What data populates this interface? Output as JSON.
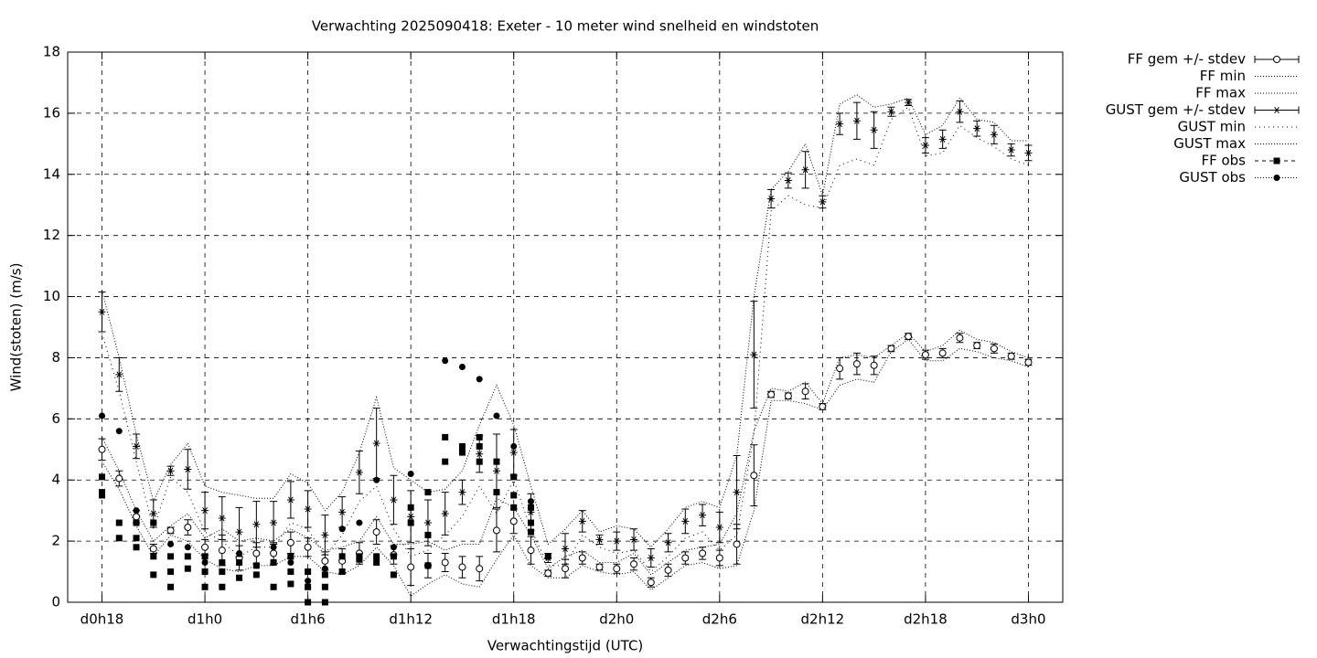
{
  "chart_data": {
    "type": "line",
    "title": "Verwachting 2025090418: Exeter - 10 meter wind snelheid en windstoten",
    "x_label": "Verwachtingstijd (UTC)",
    "y_label": "Wind(stoten) (m/s)",
    "xlim": [
      16,
      74
    ],
    "xticks": [
      {
        "value": 18,
        "label": "d0h18"
      },
      {
        "value": 24,
        "label": "d1h0"
      },
      {
        "value": 30,
        "label": "d1h6"
      },
      {
        "value": 36,
        "label": "d1h12"
      },
      {
        "value": 42,
        "label": "d1h18"
      },
      {
        "value": 48,
        "label": "d2h0"
      },
      {
        "value": 54,
        "label": "d2h6"
      },
      {
        "value": 60,
        "label": "d2h12"
      },
      {
        "value": 66,
        "label": "d2h18"
      },
      {
        "value": 72,
        "label": "d3h0"
      }
    ],
    "ylim": [
      0,
      18
    ],
    "yticks": [
      0,
      2,
      4,
      6,
      8,
      10,
      12,
      14,
      16,
      18
    ],
    "grid": true,
    "x": [
      18,
      19,
      20,
      21,
      22,
      23,
      24,
      25,
      26,
      27,
      28,
      29,
      30,
      31,
      32,
      33,
      34,
      35,
      36,
      37,
      38,
      39,
      40,
      41,
      42,
      43,
      44,
      45,
      46,
      47,
      48,
      49,
      50,
      51,
      52,
      53,
      54,
      55,
      56,
      57,
      58,
      59,
      60,
      61,
      62,
      63,
      64,
      65,
      66,
      67,
      68,
      69,
      70,
      71,
      72
    ],
    "series": [
      {
        "name": "FF gem +/- stdev",
        "color": "#000000",
        "kind": "errorbars",
        "marker": "circle",
        "line": "solid",
        "values": [
          5.0,
          4.05,
          2.8,
          1.75,
          2.35,
          2.45,
          1.8,
          1.7,
          1.45,
          1.6,
          1.6,
          1.95,
          1.8,
          1.35,
          1.35,
          1.6,
          2.3,
          1.55,
          1.15,
          1.2,
          1.3,
          1.15,
          1.1,
          2.35,
          2.65,
          1.7,
          0.95,
          1.1,
          1.45,
          1.15,
          1.1,
          1.25,
          0.65,
          1.05,
          1.45,
          1.6,
          1.45,
          1.9,
          4.15,
          6.8,
          6.75,
          6.9,
          6.4,
          7.65,
          7.8,
          7.75,
          8.3,
          8.7,
          8.1,
          8.15,
          8.65,
          8.4,
          8.3,
          8.05,
          7.85
        ],
        "errors": [
          0.35,
          0.25,
          0.2,
          0.15,
          0.1,
          0.25,
          0.25,
          0.5,
          0.4,
          0.35,
          0.35,
          0.35,
          0.3,
          0.3,
          0.4,
          0.35,
          0.4,
          0.3,
          0.6,
          0.4,
          0.3,
          0.35,
          0.4,
          0.7,
          0.4,
          0.45,
          0.1,
          0.3,
          0.2,
          0.1,
          0.15,
          0.2,
          0.15,
          0.2,
          0.2,
          0.2,
          0.25,
          0.65,
          1.0,
          0.1,
          0.1,
          0.25,
          0.1,
          0.35,
          0.35,
          0.3,
          0.1,
          0.1,
          0.15,
          0.15,
          0.15,
          0.1,
          0.15,
          0.1,
          0.1
        ]
      },
      {
        "name": "FF min",
        "color": "#000000",
        "kind": "line",
        "line": "dotted",
        "dash": "1,2",
        "values": [
          4.6,
          3.7,
          2.5,
          1.5,
          2.2,
          2.0,
          1.4,
          1.1,
          1.0,
          1.2,
          1.2,
          1.5,
          1.5,
          1.0,
          0.9,
          1.2,
          1.8,
          1.2,
          0.2,
          0.6,
          0.9,
          0.6,
          0.5,
          1.4,
          2.2,
          1.2,
          0.8,
          0.8,
          1.2,
          1.0,
          0.9,
          1.0,
          0.4,
          0.8,
          1.2,
          1.3,
          1.1,
          1.2,
          3.0,
          6.6,
          6.6,
          6.5,
          6.3,
          7.1,
          7.3,
          7.2,
          8.2,
          8.6,
          7.9,
          7.9,
          8.3,
          8.2,
          8.0,
          7.9,
          7.7
        ]
      },
      {
        "name": "FF max",
        "color": "#000000",
        "kind": "line",
        "line": "dotted",
        "dash": "1,2",
        "values": [
          5.4,
          4.3,
          3.0,
          2.0,
          2.5,
          2.9,
          2.1,
          2.4,
          2.0,
          2.1,
          2.0,
          2.4,
          2.1,
          1.7,
          1.8,
          2.0,
          2.8,
          1.9,
          1.9,
          2.0,
          1.7,
          1.9,
          1.9,
          3.4,
          3.1,
          2.2,
          1.1,
          1.5,
          1.7,
          1.3,
          1.3,
          1.6,
          0.9,
          1.3,
          1.7,
          1.8,
          1.9,
          2.9,
          5.6,
          7.0,
          6.9,
          7.2,
          6.5,
          8.0,
          8.1,
          8.0,
          8.4,
          8.8,
          8.2,
          8.4,
          8.9,
          8.6,
          8.5,
          8.2,
          8.0
        ]
      },
      {
        "name": "GUST gem +/- stdev",
        "color": "#000000",
        "kind": "errorbars",
        "marker": "star",
        "line": "solid",
        "values": [
          9.5,
          7.45,
          5.1,
          2.9,
          4.3,
          4.35,
          3.0,
          2.75,
          2.3,
          2.55,
          2.6,
          3.35,
          3.05,
          2.2,
          2.95,
          4.25,
          5.2,
          3.35,
          2.8,
          2.6,
          2.9,
          3.6,
          4.85,
          4.3,
          4.9,
          2.95,
          1.45,
          1.75,
          2.65,
          2.05,
          2.0,
          2.05,
          1.45,
          1.95,
          2.65,
          2.85,
          2.45,
          3.6,
          8.1,
          13.2,
          13.8,
          14.15,
          13.1,
          15.65,
          15.75,
          15.45,
          16.05,
          16.35,
          14.95,
          15.15,
          16.05,
          15.5,
          15.3,
          14.8,
          14.7
        ],
        "errors": [
          0.65,
          0.55,
          0.4,
          0.45,
          0.15,
          0.65,
          0.6,
          0.7,
          0.8,
          0.75,
          0.7,
          0.6,
          0.6,
          0.65,
          0.5,
          0.7,
          1.15,
          0.8,
          0.85,
          0.75,
          0.7,
          0.4,
          0.6,
          1.2,
          0.75,
          0.6,
          0.15,
          0.5,
          0.35,
          0.15,
          0.3,
          0.35,
          0.3,
          0.3,
          0.4,
          0.35,
          0.5,
          1.2,
          1.75,
          0.3,
          0.25,
          0.6,
          0.2,
          0.35,
          0.6,
          0.6,
          0.15,
          0.1,
          0.25,
          0.3,
          0.35,
          0.25,
          0.3,
          0.2,
          0.25
        ]
      },
      {
        "name": "GUST min",
        "color": "#000000",
        "kind": "line",
        "line": "dotted",
        "dash": "1,4",
        "values": [
          8.8,
          6.9,
          4.6,
          2.4,
          4.1,
          3.6,
          2.3,
          2.0,
          1.5,
          1.8,
          1.8,
          2.6,
          2.4,
          1.5,
          2.2,
          3.3,
          3.8,
          2.4,
          1.5,
          1.7,
          2.2,
          2.8,
          3.8,
          2.9,
          4.0,
          2.4,
          1.2,
          1.2,
          2.2,
          1.8,
          1.6,
          1.7,
          1.0,
          1.5,
          2.1,
          2.3,
          1.7,
          2.2,
          5.5,
          12.8,
          13.3,
          13.0,
          12.9,
          14.3,
          14.5,
          14.3,
          15.8,
          16.2,
          14.6,
          14.7,
          15.6,
          15.2,
          14.9,
          14.5,
          14.3
        ]
      },
      {
        "name": "GUST max",
        "color": "#000000",
        "kind": "line",
        "line": "dotted",
        "dash": "1,2",
        "values": [
          10.2,
          8.0,
          5.5,
          3.3,
          4.5,
          5.2,
          3.8,
          3.6,
          3.5,
          3.4,
          3.4,
          4.2,
          3.9,
          3.0,
          3.6,
          4.9,
          6.7,
          4.4,
          4.0,
          3.6,
          3.7,
          4.3,
          5.8,
          7.1,
          5.8,
          3.8,
          1.9,
          2.4,
          3.0,
          2.3,
          2.5,
          2.4,
          1.8,
          2.4,
          3.1,
          3.3,
          3.1,
          4.8,
          10.0,
          13.5,
          14.1,
          15.0,
          13.3,
          16.3,
          16.6,
          16.2,
          16.3,
          16.5,
          15.3,
          15.6,
          16.5,
          15.8,
          15.7,
          15.1,
          15.1
        ]
      },
      {
        "name": "FF obs",
        "color": "#000000",
        "kind": "points",
        "marker": "square",
        "line": "dashed",
        "dash": "4,4",
        "x": [
          18,
          18,
          18,
          19,
          19,
          20,
          20,
          20,
          21,
          21,
          21,
          22,
          22,
          22,
          23,
          23,
          24,
          24,
          24,
          25,
          25,
          25,
          26,
          26,
          27,
          27,
          28,
          28,
          29,
          29,
          29,
          30,
          30,
          30,
          31,
          31,
          31,
          32,
          32,
          33,
          33,
          34,
          34,
          35,
          35,
          36,
          36,
          37,
          37,
          37,
          38,
          38,
          39,
          39,
          40,
          40,
          40,
          41,
          41,
          42,
          42,
          42,
          43,
          43,
          43,
          44
        ],
        "values": [
          4.1,
          3.6,
          3.5,
          2.6,
          2.1,
          2.6,
          2.1,
          1.8,
          2.6,
          1.5,
          0.9,
          1.5,
          1.0,
          0.5,
          1.5,
          1.1,
          1.5,
          1.0,
          0.5,
          1.3,
          1.0,
          0.5,
          1.3,
          0.8,
          1.2,
          0.9,
          1.3,
          0.5,
          1.5,
          1.0,
          0.6,
          1.0,
          0.5,
          0.0,
          0.9,
          0.5,
          0.0,
          1.5,
          1.0,
          1.5,
          1.4,
          1.5,
          1.3,
          1.5,
          0.9,
          3.1,
          2.6,
          3.6,
          2.2,
          1.2,
          5.4,
          4.6,
          5.1,
          4.9,
          5.4,
          5.1,
          4.6,
          4.6,
          3.6,
          4.1,
          3.5,
          3.1,
          3.1,
          2.6,
          2.3,
          1.5
        ]
      },
      {
        "name": "GUST obs",
        "color": "#000000",
        "kind": "points",
        "marker": "dot",
        "line": "dotted",
        "dash": "1,2",
        "x": [
          18,
          19,
          20,
          21,
          22,
          23,
          24,
          25,
          26,
          27,
          28,
          29,
          30,
          31,
          32,
          33,
          34,
          35,
          36,
          37,
          38,
          39,
          40,
          41,
          42,
          43
        ],
        "values": [
          6.1,
          5.6,
          3.0,
          2.6,
          1.9,
          1.8,
          1.3,
          1.3,
          1.6,
          1.2,
          1.8,
          1.3,
          0.7,
          1.1,
          2.4,
          2.6,
          4.0,
          1.8,
          4.2,
          2.2,
          7.9,
          7.7,
          7.3,
          6.1,
          5.1,
          3.3
        ]
      }
    ]
  }
}
